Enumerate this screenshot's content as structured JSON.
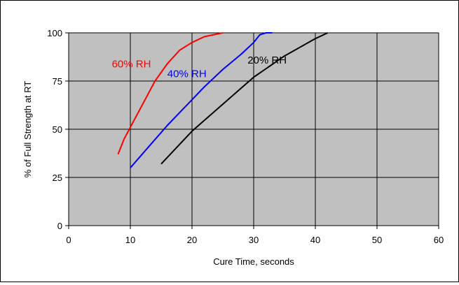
{
  "chart_data": {
    "type": "line",
    "xlabel": "Cure Time, seconds",
    "ylabel": "% of Full Strength at RT",
    "xlim": [
      0,
      60
    ],
    "ylim": [
      0,
      100
    ],
    "x_ticks": [
      "0",
      "10",
      "20",
      "30",
      "40",
      "50",
      "60"
    ],
    "y_ticks": [
      "0",
      "25",
      "50",
      "75",
      "100"
    ],
    "grid": true,
    "plot_background": "#c0c0c0",
    "series": [
      {
        "name": "60% RH",
        "color": "#ff0000",
        "points": [
          [
            8,
            37
          ],
          [
            9,
            45
          ],
          [
            10,
            51
          ],
          [
            12,
            63
          ],
          [
            14,
            75
          ],
          [
            16,
            84
          ],
          [
            18,
            91
          ],
          [
            20,
            95
          ],
          [
            22,
            98
          ],
          [
            25,
            100
          ]
        ]
      },
      {
        "name": "40% RH",
        "color": "#0000ff",
        "points": [
          [
            10,
            30
          ],
          [
            13,
            41
          ],
          [
            16,
            52
          ],
          [
            19,
            62
          ],
          [
            22,
            72
          ],
          [
            25,
            81
          ],
          [
            28,
            89
          ],
          [
            30,
            95
          ],
          [
            31,
            99
          ],
          [
            32,
            100
          ],
          [
            33,
            100
          ]
        ]
      },
      {
        "name": "20% RH",
        "color": "#000000",
        "points": [
          [
            15,
            32
          ],
          [
            20,
            49
          ],
          [
            25,
            63
          ],
          [
            30,
            77
          ],
          [
            35,
            88
          ],
          [
            40,
            97
          ],
          [
            42,
            100
          ]
        ]
      }
    ]
  }
}
